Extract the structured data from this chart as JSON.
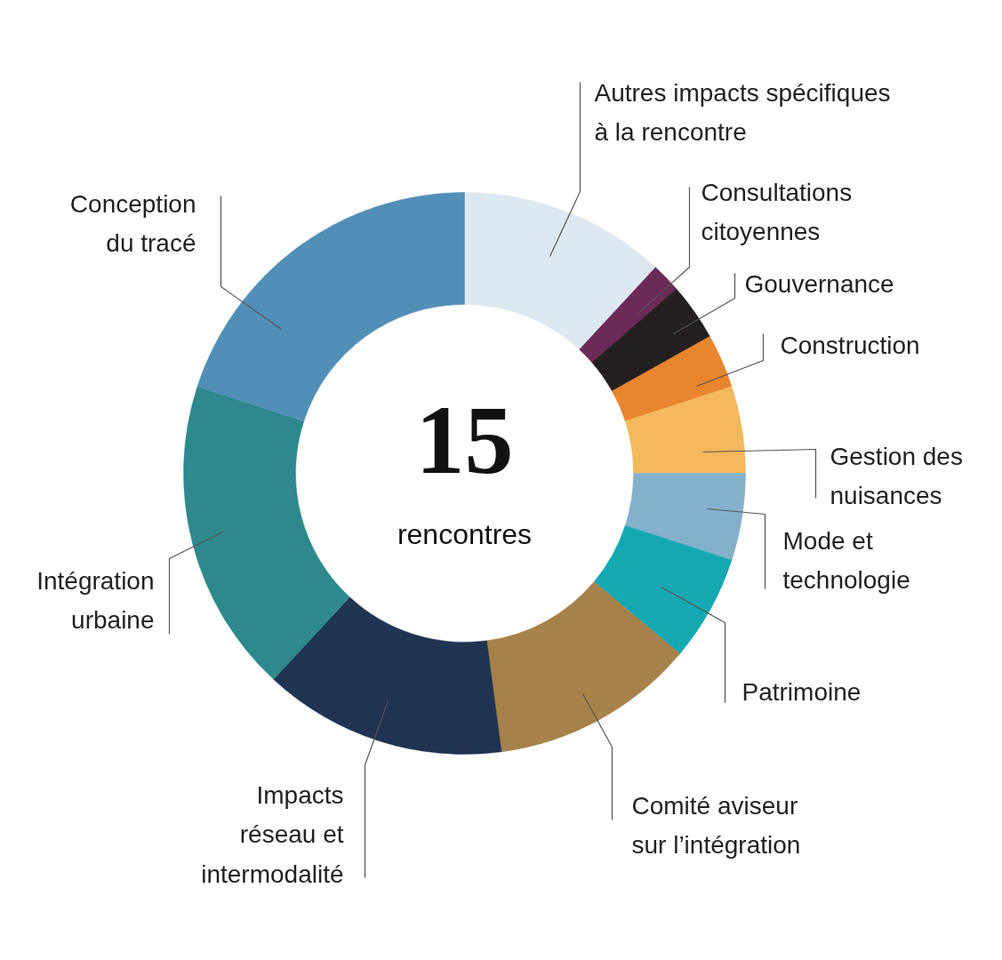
{
  "chart_data": {
    "type": "donut",
    "categories": [
      "Autres impacts spécifiques à la rencontre",
      "Consultations citoyennes",
      "Gouvernance",
      "Construction",
      "Gestion des nuisances",
      "Mode et technologie",
      "Patrimoine",
      "Comité aviseur sur l’intégration",
      "Impacts réseau et intermodalité",
      "Intégration urbaine",
      "Conception du tracé"
    ],
    "values": [
      11.9,
      1.7,
      3.3,
      3.1,
      5,
      5,
      6.1,
      11.8,
      14,
      18.1,
      20
    ],
    "colors": [
      "#dde9f0",
      "#6b2a57",
      "#231f20",
      "#e8852e",
      "#f5b85c",
      "#85b0cc",
      "#15a8b3",
      "#a7814b",
      "#1f3352",
      "#2e888c",
      "#528fb8"
    ],
    "annotations": [
      "15",
      "rencontres"
    ]
  }
}
